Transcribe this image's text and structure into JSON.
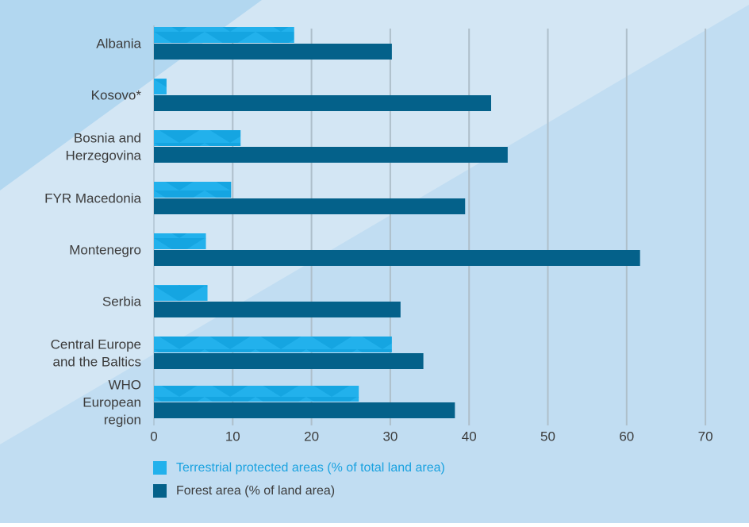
{
  "chart_data": {
    "type": "bar",
    "orientation": "horizontal",
    "categories": [
      [
        "Albania"
      ],
      [
        "Kosovo*"
      ],
      [
        "Bosnia and",
        "Herzegovina"
      ],
      [
        "FYR Macedonia"
      ],
      [
        "Montenegro"
      ],
      [
        "Serbia"
      ],
      [
        "Central Europe",
        "and the Baltics"
      ],
      [
        "WHO",
        "European",
        "region"
      ]
    ],
    "series": [
      {
        "name": "Terrestrial protected areas (% of total land area)",
        "values": [
          17.8,
          1.6,
          11.0,
          9.8,
          6.6,
          6.8,
          30.2,
          26.0
        ],
        "color": "#1aaae8"
      },
      {
        "name": "Forest area (% of land area)",
        "values": [
          30.2,
          42.8,
          44.9,
          39.5,
          61.7,
          31.3,
          34.2,
          38.2
        ],
        "color": "#04618a"
      }
    ],
    "xlim": [
      0,
      70
    ],
    "xticks": [
      "0",
      "10",
      "20",
      "30",
      "40",
      "50",
      "60",
      "70"
    ],
    "grid": true,
    "legend_position": "bottom-left"
  }
}
